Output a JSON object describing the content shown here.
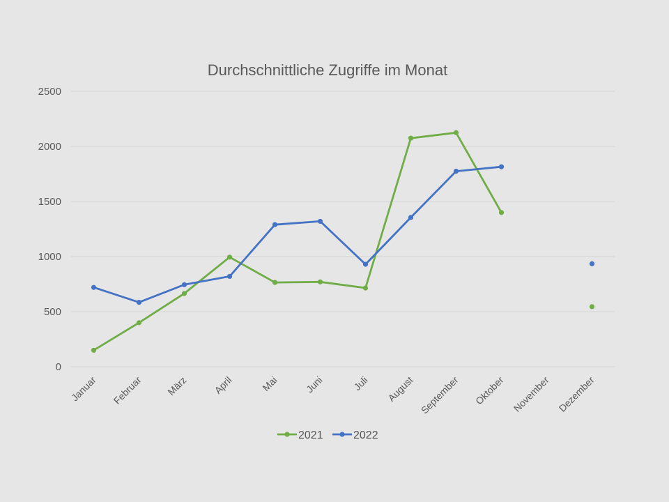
{
  "chart_data": {
    "type": "line",
    "title": "Durchschnittliche Zugriffe im Monat",
    "categories": [
      "Januar",
      "Februar",
      "März",
      "April",
      "Mai",
      "Juni",
      "Juli",
      "August",
      "September",
      "Oktober",
      "November",
      "Dezember"
    ],
    "ylim": [
      0,
      2500
    ],
    "yticks": [
      0,
      500,
      1000,
      1500,
      2000,
      2500
    ],
    "grid": true,
    "legend": "bottom",
    "series": [
      {
        "name": "2021",
        "color": "#70ad47",
        "values": [
          150,
          400,
          665,
          995,
          765,
          770,
          715,
          2075,
          2125,
          1400,
          null,
          545
        ]
      },
      {
        "name": "2022",
        "color": "#4472c4",
        "values": [
          720,
          585,
          745,
          820,
          1290,
          1320,
          930,
          1355,
          1775,
          1815,
          null,
          935
        ]
      }
    ]
  }
}
